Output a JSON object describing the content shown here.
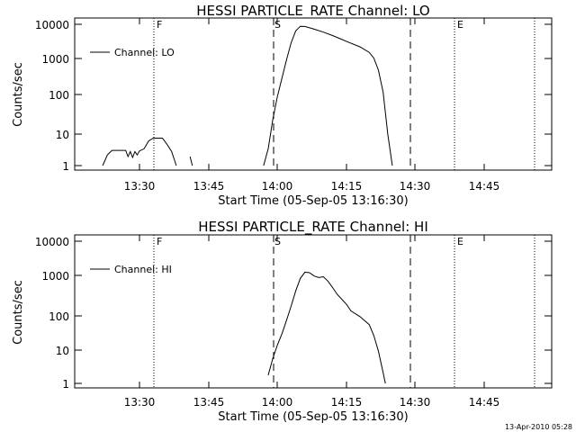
{
  "footer": {
    "timestamp": "13-Apr-2010 05:28"
  },
  "chart_data": [
    {
      "type": "line",
      "title": "HESSI PARTICLE_RATE Channel: LO",
      "xlabel": "Start Time (05-Sep-05 13:16:30)",
      "ylabel": "Counts/sec",
      "y_scale": "log",
      "ylim": [
        1,
        10000
      ],
      "xlim": [
        "13:16:30",
        "15:02:00"
      ],
      "grid": false,
      "legend": {
        "position": "top-left",
        "entries": [
          "Channel: LO"
        ]
      },
      "x_ticks": [
        "13:30",
        "13:45",
        "14:00",
        "14:15",
        "14:30",
        "14:45"
      ],
      "y_ticks": [
        "1",
        "10",
        "100",
        "1000",
        "10000"
      ],
      "markers": [
        {
          "label": "F",
          "time": "13:32",
          "style": "dotted"
        },
        {
          "label": "S",
          "time": "13:59",
          "style": "dashed"
        },
        {
          "label": "",
          "time": "14:27",
          "style": "dashed"
        },
        {
          "label": "E",
          "time": "14:38",
          "style": "dotted"
        },
        {
          "label": "",
          "time": "14:56",
          "style": "dotted"
        }
      ],
      "series": [
        {
          "segments": [
            [
              [
                "13:22",
                1
              ],
              [
                "13:23",
                2
              ],
              [
                "13:24",
                2.7
              ],
              [
                "13:27",
                2.7
              ],
              [
                "13:27.5",
                1.8
              ],
              [
                "13:28",
                2.5
              ],
              [
                "13:28.5",
                1.7
              ],
              [
                "13:29",
                2.5
              ],
              [
                "13:29.5",
                2.0
              ],
              [
                "13:30",
                2.6
              ],
              [
                "13:31",
                3.0
              ],
              [
                "13:32",
                5
              ],
              [
                "13:33",
                6
              ],
              [
                "13:35",
                6
              ],
              [
                "13:36",
                4
              ],
              [
                "13:37",
                2.5
              ],
              [
                "13:38",
                1
              ]
            ],
            [
              [
                "13:41",
                1.8
              ],
              [
                "13:41.5",
                1
              ]
            ],
            [
              [
                "13:57",
                1
              ],
              [
                "13:58",
                3
              ],
              [
                "13:59",
                20
              ],
              [
                "14:00",
                90
              ],
              [
                "14:01",
                300
              ],
              [
                "14:02",
                1000
              ],
              [
                "14:03",
                3000
              ],
              [
                "14:04",
                6500
              ],
              [
                "14:05",
                8800
              ],
              [
                "14:06",
                8700
              ],
              [
                "14:08",
                7300
              ],
              [
                "14:10",
                6000
              ],
              [
                "14:12",
                4800
              ],
              [
                "14:15",
                3300
              ],
              [
                "14:18",
                2300
              ],
              [
                "14:20",
                1600
              ],
              [
                "14:21",
                1100
              ],
              [
                "14:22",
                500
              ],
              [
                "14:23",
                120
              ],
              [
                "14:24",
                8
              ],
              [
                "14:25",
                1
              ]
            ]
          ]
        }
      ]
    },
    {
      "type": "line",
      "title": "HESSI PARTICLE_RATE Channel: HI",
      "xlabel": "Start Time (05-Sep-05 13:16:30)",
      "ylabel": "Counts/sec",
      "y_scale": "log",
      "ylim": [
        1,
        10000
      ],
      "xlim": [
        "13:16:30",
        "15:02:00"
      ],
      "grid": false,
      "legend": {
        "position": "top-left",
        "entries": [
          "Channel: HI"
        ]
      },
      "x_ticks": [
        "13:30",
        "13:45",
        "14:00",
        "14:15",
        "14:30",
        "14:45"
      ],
      "y_ticks": [
        "1",
        "10",
        "100",
        "1000",
        "10000"
      ],
      "markers": [
        {
          "label": "F",
          "time": "13:32",
          "style": "dotted"
        },
        {
          "label": "S",
          "time": "13:59",
          "style": "dashed"
        },
        {
          "label": "",
          "time": "14:27",
          "style": "dashed"
        },
        {
          "label": "E",
          "time": "14:38",
          "style": "dotted"
        },
        {
          "label": "",
          "time": "14:56",
          "style": "dotted"
        }
      ],
      "series": [
        {
          "segments": [
            [
              [
                "13:58",
                1.7
              ],
              [
                "13:59",
                5
              ],
              [
                "14:00",
                12
              ],
              [
                "14:01",
                25
              ],
              [
                "14:02",
                60
              ],
              [
                "14:03",
                150
              ],
              [
                "14:04",
                400
              ],
              [
                "14:05",
                900
              ],
              [
                "14:06",
                1350
              ],
              [
                "14:07",
                1300
              ],
              [
                "14:08",
                1050
              ],
              [
                "14:09",
                950
              ],
              [
                "14:10",
                1000
              ],
              [
                "14:11",
                750
              ],
              [
                "14:12",
                500
              ],
              [
                "14:13",
                320
              ],
              [
                "14:15",
                170
              ],
              [
                "14:16",
                110
              ],
              [
                "14:18",
                75
              ],
              [
                "14:20",
                45
              ],
              [
                "14:21",
                22
              ],
              [
                "14:22",
                8
              ],
              [
                "14:23",
                2
              ],
              [
                "14:23.5",
                1
              ]
            ]
          ]
        }
      ]
    }
  ]
}
